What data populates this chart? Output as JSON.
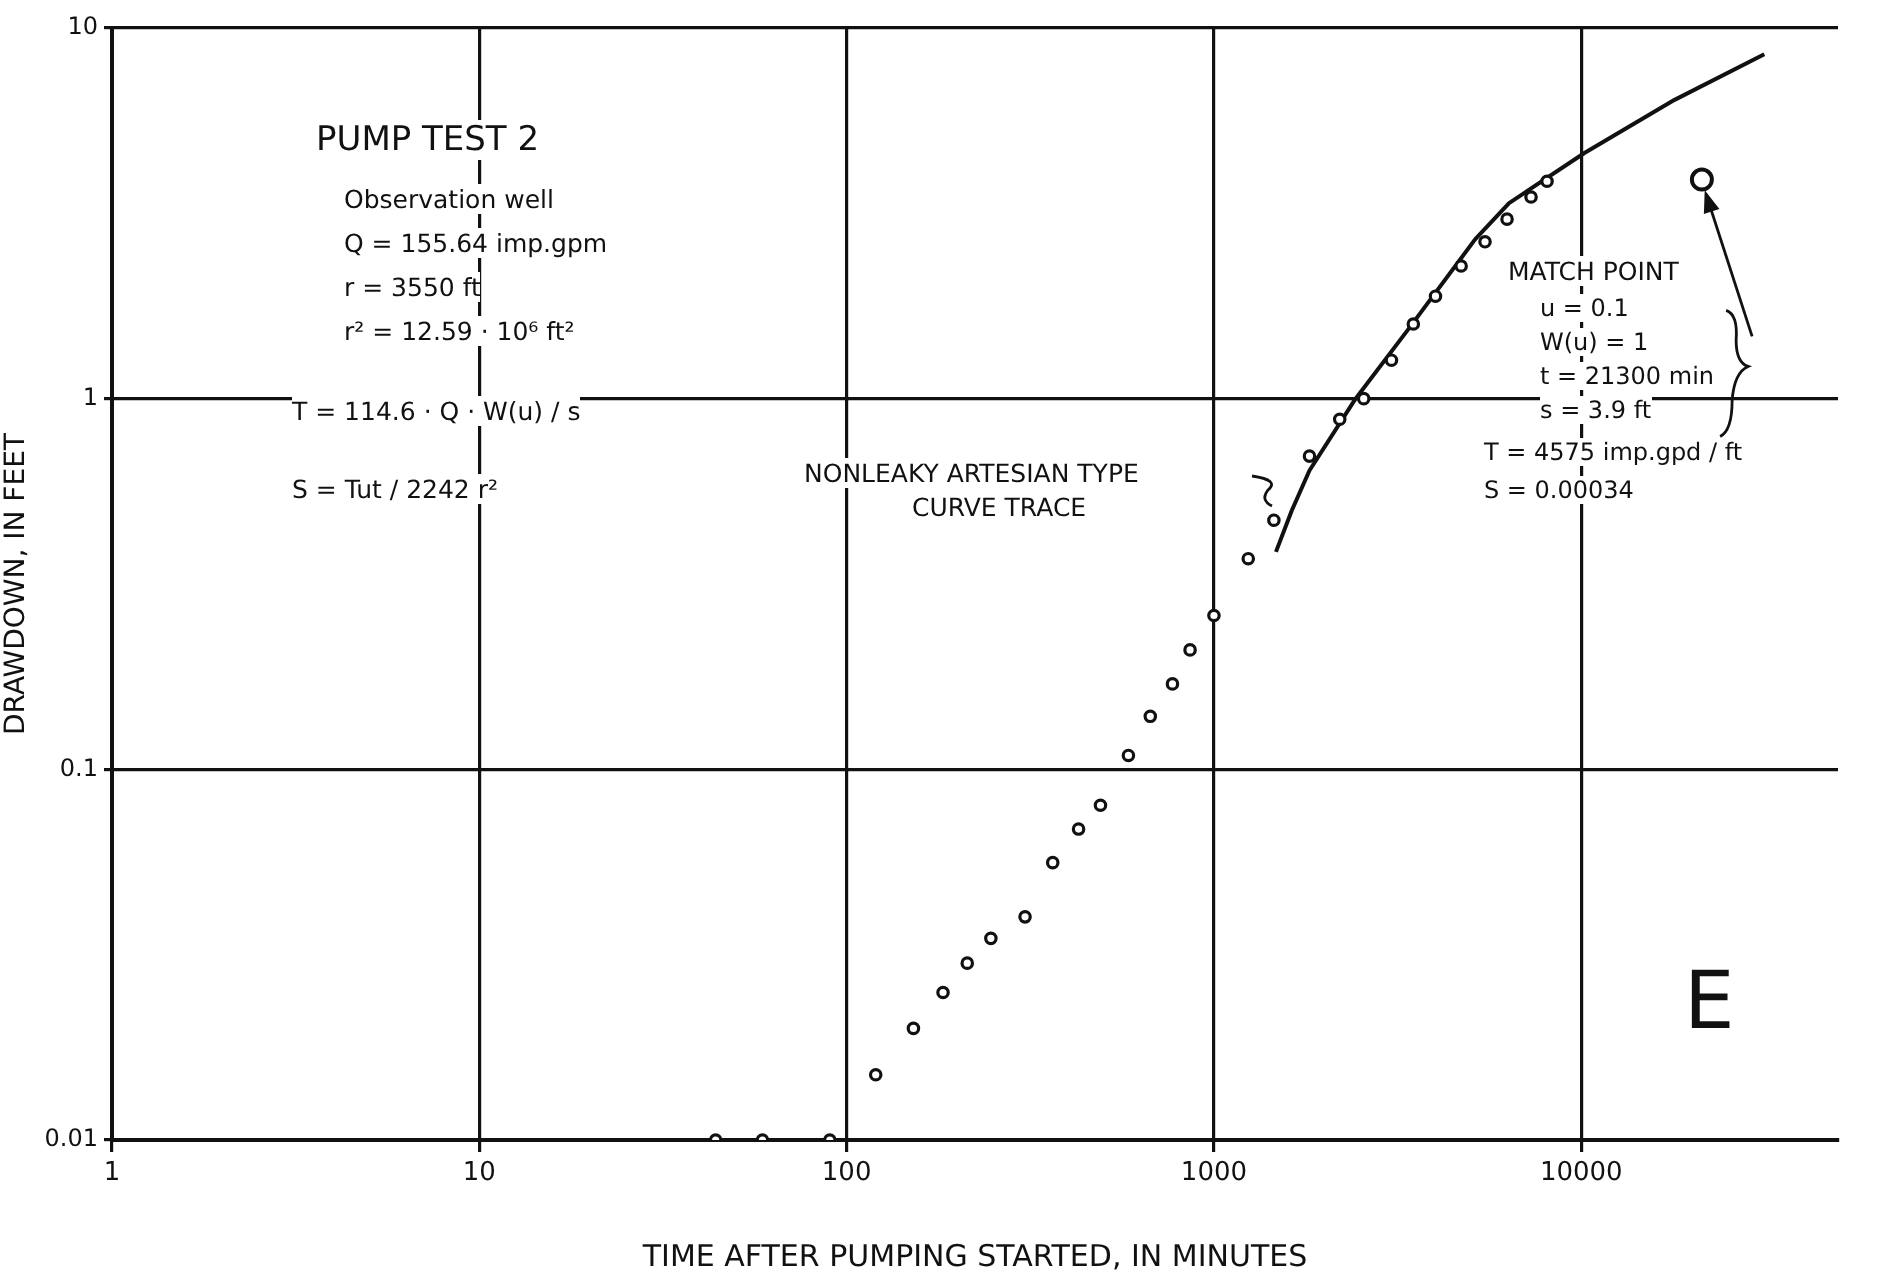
{
  "chart_data": {
    "type": "scatter",
    "xlabel": "TIME AFTER PUMPING STARTED, IN MINUTES",
    "ylabel": "DRAWDOWN, IN FEET",
    "series": [
      {
        "color": "#111111",
        "marker": "circle",
        "x": [
          44,
          59,
          90,
          120,
          152,
          183,
          213,
          247,
          306,
          364,
          428,
          491,
          585,
          671,
          771,
          861,
          1000,
          1240,
          1456,
          1820,
          2200,
          2557,
          3043,
          3490,
          4010,
          4710,
          5470,
          6280,
          7300,
          8070
        ],
        "values": [
          0.01,
          0.01,
          0.01,
          0.015,
          0.02,
          0.025,
          0.03,
          0.035,
          0.04,
          0.056,
          0.069,
          0.08,
          0.109,
          0.139,
          0.17,
          0.21,
          0.26,
          0.37,
          0.47,
          0.7,
          0.88,
          1.0,
          1.27,
          1.59,
          1.89,
          2.28,
          2.65,
          3.05,
          3.5,
          3.86
        ]
      },
      {
        "type": "line",
        "color": "#111111",
        "marker": "none",
        "line_style": "solid",
        "x": [
          1475,
          1630,
          1820,
          2430,
          3400,
          5140,
          6360,
          10200,
          17950,
          31500
        ],
        "values": [
          0.386,
          0.5,
          0.64,
          1.0,
          1.55,
          2.69,
          3.37,
          4.6,
          6.4,
          8.5
        ]
      },
      {
        "color": "#111111",
        "marker": "circle",
        "x": [
          21300
        ],
        "values": [
          3.9
        ]
      }
    ],
    "xlim": [
      1,
      50000
    ],
    "xticks": [
      1,
      10,
      100,
      1000,
      10000
    ],
    "ylim": [
      0.01,
      10
    ],
    "yticks": [
      0.01,
      0.1,
      1,
      10
    ],
    "log": "xy",
    "grid": true,
    "legend": false,
    "annotations": [
      "PUMP TEST 2",
      "Observation well",
      "Q = 155.64 imp.gpm",
      "r = 3550 ft",
      "r² = 12.59 · 10⁶ ft²",
      "T = 114.6 · Q · W(u) / s",
      "S = Tut / 2242 r²",
      "NONLEAKY ARTESIAN TYPE",
      "CURVE TRACE",
      "MATCH POINT",
      "u = 0.1",
      "W(u) = 1",
      "t = 21300 min",
      "s = 3.9 ft",
      "T = 4575 imp.gpd / ft",
      "S = 0.00034",
      "E"
    ]
  }
}
